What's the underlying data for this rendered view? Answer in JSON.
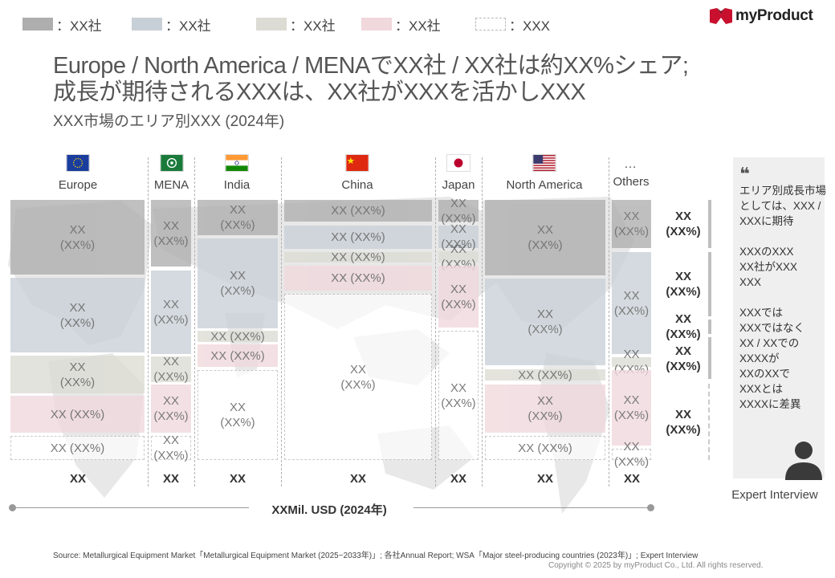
{
  "legend": [
    {
      "label": "：XX社",
      "color": "#aeaeae"
    },
    {
      "label": "：XX社",
      "color": "#c8d0d7"
    },
    {
      "label": "：XX社",
      "color": "#dcdcd4"
    },
    {
      "label": "：XX社",
      "color": "#f0d8dd"
    },
    {
      "label": "：XXX",
      "color": "#ffffff"
    }
  ],
  "logo": {
    "text": "myProduct"
  },
  "title": {
    "line1": "Europe / North America / MENAでXX社 / XX社は約XX%シェア;",
    "line2": "成長が期待されるXXXは、XX社がXXXを活かしXXX",
    "subtitle": "XXX市場のエリア別XXX (2024年)"
  },
  "regions": [
    {
      "name": "Europe",
      "total": "XX",
      "cells": [
        "XX\n(XX%)",
        "XX\n(XX%)",
        "XX\n(XX%)",
        "XX (XX%)",
        "XX (XX%)"
      ]
    },
    {
      "name": "MENA",
      "total": "XX",
      "cells": [
        "XX\n(XX%)",
        "XX\n(XX%)",
        "XX\n(XX%)",
        "XX\n(XX%)",
        "XX\n(XX%)"
      ]
    },
    {
      "name": "India",
      "total": "XX",
      "cells": [
        "XX\n(XX%)",
        "XX\n(XX%)",
        "XX (XX%)",
        "XX (XX%)",
        "XX\n(XX%)"
      ]
    },
    {
      "name": "China",
      "total": "XX",
      "cells": [
        "XX (XX%)",
        "XX (XX%)",
        "XX (XX%)",
        "XX (XX%)",
        "XX\n(XX%)"
      ]
    },
    {
      "name": "Japan",
      "total": "XX",
      "cells": [
        "XX\n(XX%)",
        "XX (XX%)",
        "XX (XX%)",
        "XX\n(XX%)",
        "XX\n(XX%)"
      ]
    },
    {
      "name": "North America",
      "total": "XX",
      "cells": [
        "XX\n(XX%)",
        "XX\n(XX%)",
        "XX (XX%)",
        "XX\n(XX%)",
        "XX (XX%)"
      ]
    },
    {
      "name": "Others",
      "glyph": "…",
      "total": "XX",
      "cells": [
        "XX\n(XX%)",
        "XX\n(XX%)",
        "XX (XX%)",
        "XX\n(XX%)",
        "XX (XX%)"
      ]
    }
  ],
  "right_labels": [
    "XX\n(XX%)",
    "XX\n(XX%)",
    "XX\n(XX%)",
    "XX\n(XX%)",
    "XX\n(XX%)"
  ],
  "axis": {
    "label": "XXMil. USD (2024年)"
  },
  "expert": {
    "quote_mark": "❝",
    "text": "エリア別成長市場としては、XXX / XXXに期待\n\nXXXのXXX\nXX社がXXX\nXXX\n\nXXXでは\nXXXではなく\nXX / XXでの\nXXXXが\nXXのXXで\nXXXとは\nXXXXに差異",
    "label": "Expert Interview"
  },
  "source": "Source: Metallurgical Equipment Market「Metallurgical Equipment Market (2025~2033年)」; 各社Annual Report; WSA「Major steel-producing countries (2023年)」; Expert Interview",
  "copyright": "Copyright © 2025 by myProduct Co., Ltd.  All rights reserved."
}
